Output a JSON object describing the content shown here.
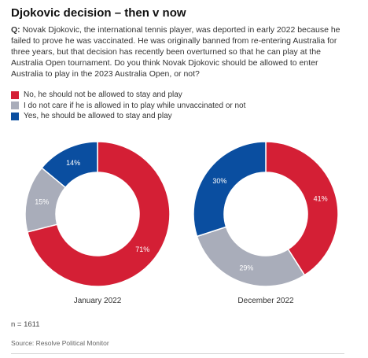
{
  "title": "Djokovic decision – then v now",
  "question": {
    "label": "Q:",
    "text": "Novak Djokovic, the international tennis player, was deported in early 2022 because he failed to prove he was vaccinated. He was originally banned from re-entering Australia for three years, but that decision has recently been overturned so that he can play at the Australia Open tournament. Do you think Novak Djokovic should be allowed to enter Australia to play in the 2023 Australia Open, or not?"
  },
  "legend": [
    {
      "label": "No, he should not be allowed to stay and play",
      "color": "#d41f35"
    },
    {
      "label": "I do not care if he is allowed in to play while unvaccinated or not",
      "color": "#a9adba"
    },
    {
      "label": "Yes, he should be allowed to stay and play",
      "color": "#0a4ea0"
    }
  ],
  "chart_data": [
    {
      "type": "pie",
      "xlabel": "January 2022",
      "slices": [
        {
          "category": "No, he should not be allowed to stay and play",
          "value": 71,
          "label": "71%",
          "color": "#d41f35"
        },
        {
          "category": "I do not care if he is allowed in to play while unvaccinated or not",
          "value": 15,
          "label": "15%",
          "color": "#a9adba"
        },
        {
          "category": "Yes, he should be allowed to stay and play",
          "value": 14,
          "label": "14%",
          "color": "#0a4ea0"
        }
      ]
    },
    {
      "type": "pie",
      "xlabel": "December 2022",
      "slices": [
        {
          "category": "No, he should not be allowed to stay and play",
          "value": 41,
          "label": "41%",
          "color": "#d41f35"
        },
        {
          "category": "I do not care if he is allowed in to play while unvaccinated or not",
          "value": 29,
          "label": "29%",
          "color": "#a9adba"
        },
        {
          "category": "Yes, he should be allowed to stay and play",
          "value": 30,
          "label": "30%",
          "color": "#0a4ea0"
        }
      ]
    }
  ],
  "footer": {
    "n": "n = 1611",
    "source": "Source: Resolve Political Monitor"
  }
}
